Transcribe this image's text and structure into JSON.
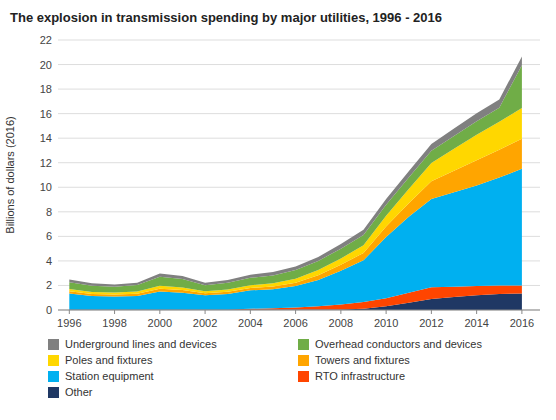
{
  "chart_data": {
    "type": "area",
    "stacked": true,
    "title": "The explosion in transmission spending by major utilities, 1996 - 2016",
    "y_label": "Billions of dollars (2016)",
    "x": [
      1996,
      1997,
      1998,
      1999,
      2000,
      2001,
      2002,
      2003,
      2004,
      2005,
      2006,
      2007,
      2008,
      2009,
      2010,
      2011,
      2012,
      2013,
      2014,
      2015,
      2016
    ],
    "series": [
      {
        "name": "Other",
        "color": "#1F3864",
        "values": [
          0.05,
          0.05,
          0.05,
          0.05,
          0.05,
          0.05,
          0.05,
          0.05,
          0.05,
          0.05,
          0.05,
          0.05,
          0.05,
          0.1,
          0.3,
          0.6,
          0.9,
          1.05,
          1.2,
          1.3,
          1.35
        ]
      },
      {
        "name": "RTO infrastructure",
        "color": "#FF4500",
        "values": [
          0.0,
          0.0,
          0.0,
          0.0,
          0.0,
          0.0,
          0.0,
          0.0,
          0.05,
          0.1,
          0.15,
          0.25,
          0.4,
          0.55,
          0.65,
          0.8,
          0.95,
          0.85,
          0.75,
          0.7,
          0.65
        ]
      },
      {
        "name": "Station equipment",
        "color": "#00B0F0",
        "values": [
          1.3,
          1.1,
          1.05,
          1.1,
          1.45,
          1.35,
          1.15,
          1.25,
          1.5,
          1.55,
          1.75,
          2.15,
          2.75,
          3.4,
          5.0,
          6.2,
          7.2,
          7.7,
          8.2,
          8.8,
          9.5
        ]
      },
      {
        "name": "Towers and fixtures",
        "color": "#FFA500",
        "values": [
          0.18,
          0.16,
          0.16,
          0.18,
          0.24,
          0.22,
          0.16,
          0.18,
          0.2,
          0.22,
          0.28,
          0.38,
          0.48,
          0.6,
          0.85,
          1.1,
          1.45,
          1.75,
          2.05,
          2.25,
          2.45
        ]
      },
      {
        "name": "Poles and fixtures",
        "color": "#FFD700",
        "values": [
          0.18,
          0.16,
          0.16,
          0.18,
          0.24,
          0.22,
          0.16,
          0.2,
          0.22,
          0.25,
          0.32,
          0.42,
          0.52,
          0.62,
          0.88,
          1.15,
          1.48,
          1.78,
          2.08,
          2.28,
          2.5
        ]
      },
      {
        "name": "Overhead conductors and devices",
        "color": "#70AD47",
        "values": [
          0.55,
          0.5,
          0.48,
          0.52,
          0.72,
          0.68,
          0.5,
          0.55,
          0.6,
          0.65,
          0.7,
          0.75,
          0.8,
          0.85,
          0.9,
          0.95,
          1.0,
          1.05,
          1.1,
          1.15,
          3.5
        ]
      },
      {
        "name": "Underground lines and devices",
        "color": "#808080",
        "values": [
          0.22,
          0.2,
          0.18,
          0.2,
          0.27,
          0.25,
          0.2,
          0.22,
          0.25,
          0.27,
          0.29,
          0.32,
          0.37,
          0.42,
          0.46,
          0.5,
          0.55,
          0.6,
          0.65,
          0.68,
          0.7
        ]
      }
    ],
    "xlim": [
      1995.5,
      2016.8
    ],
    "xticks": [
      1996,
      1998,
      2000,
      2002,
      2004,
      2006,
      2008,
      2010,
      2012,
      2014,
      2016
    ],
    "ylim": [
      0,
      22
    ],
    "yticks": [
      0,
      2,
      4,
      6,
      8,
      10,
      12,
      14,
      16,
      18,
      20,
      22
    ],
    "grid": true,
    "legend": "bottom"
  }
}
